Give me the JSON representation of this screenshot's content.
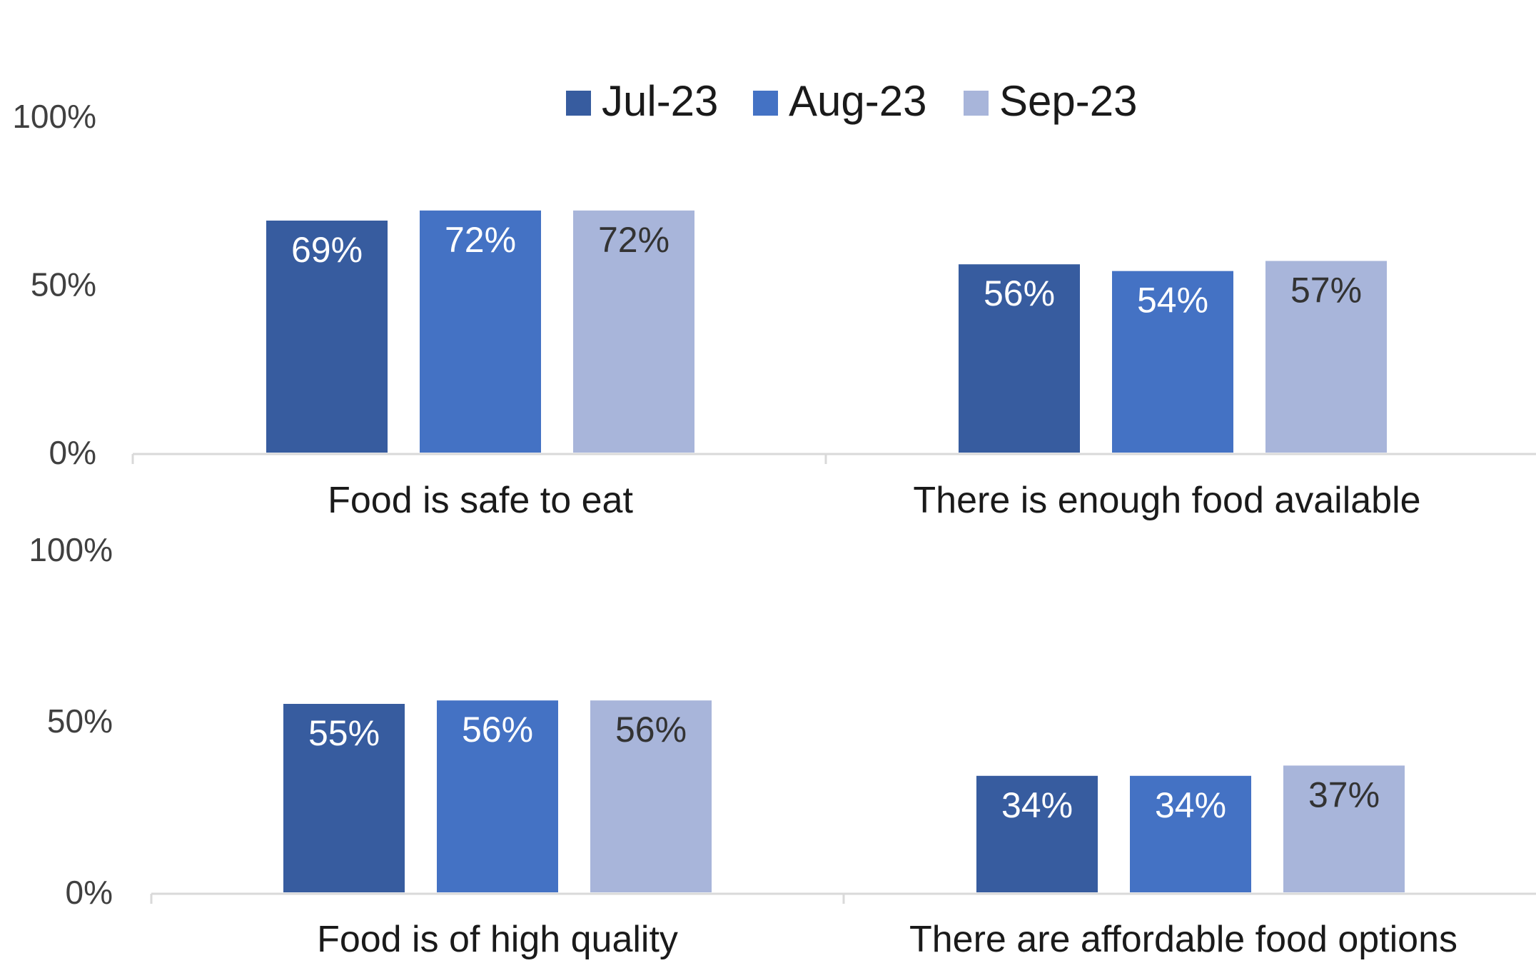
{
  "chart_data": [
    {
      "type": "bar",
      "categories": [
        "Food is safe to eat",
        "There is enough food available"
      ],
      "series": [
        {
          "name": "Jul-23",
          "values": [
            69,
            56
          ]
        },
        {
          "name": "Aug-23",
          "values": [
            72,
            54
          ]
        },
        {
          "name": "Sep-23",
          "values": [
            72,
            57
          ]
        }
      ],
      "data_labels": [
        [
          "69%",
          "56%"
        ],
        [
          "72%",
          "54%"
        ],
        [
          "72%",
          "57%"
        ]
      ],
      "y_ticks": [
        "0%",
        "50%",
        "100%"
      ],
      "ylim": [
        0,
        100
      ],
      "grid": false,
      "legend": "top-center"
    },
    {
      "type": "bar",
      "categories": [
        "Food is of high quality",
        "There are affordable food options"
      ],
      "series": [
        {
          "name": "Jul-23",
          "values": [
            55,
            34
          ]
        },
        {
          "name": "Aug-23",
          "values": [
            56,
            34
          ]
        },
        {
          "name": "Sep-23",
          "values": [
            56,
            37
          ]
        }
      ],
      "data_labels": [
        [
          "55%",
          "34%"
        ],
        [
          "56%",
          "34%"
        ],
        [
          "56%",
          "37%"
        ]
      ],
      "y_ticks": [
        "0%",
        "50%",
        "100%"
      ],
      "ylim": [
        0,
        100
      ],
      "grid": false
    }
  ],
  "legend": {
    "items": [
      "Jul-23",
      "Aug-23",
      "Sep-23"
    ]
  },
  "colors": {
    "series": [
      "#375C9F",
      "#4472C4",
      "#A8B5DA"
    ],
    "axis": "#D9D9D9",
    "label_light": "#ffffff",
    "label_dark": "#333333"
  }
}
